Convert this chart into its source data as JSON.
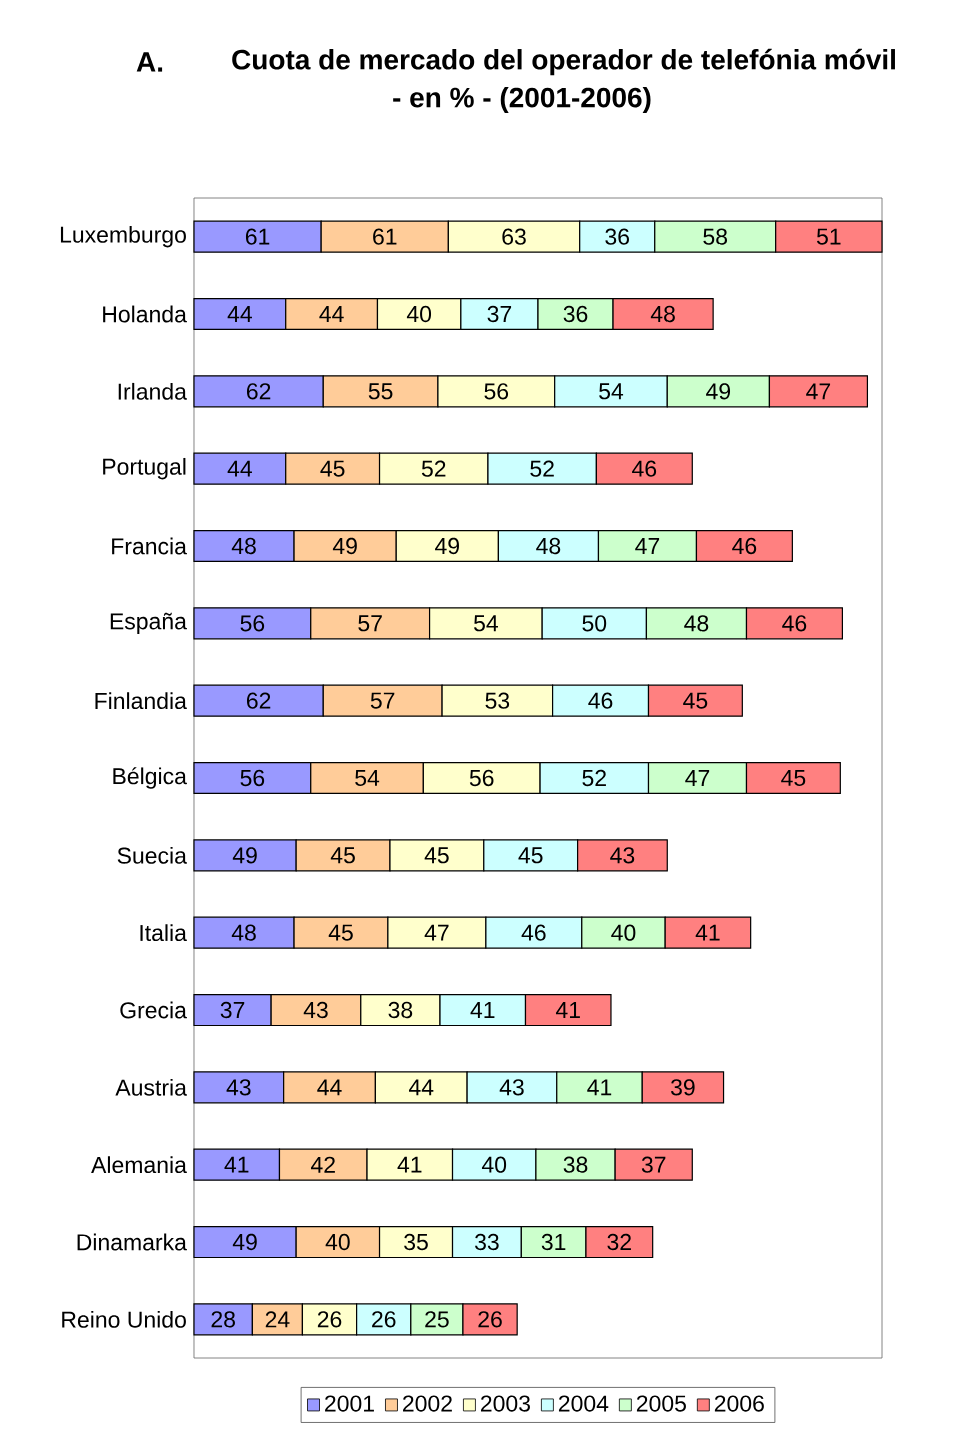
{
  "chart_data": {
    "type": "bar",
    "orientation": "horizontal",
    "stacked": true,
    "data_labels": true,
    "legend": "bottom",
    "title": "Cuota de mercado del operador de telefónia móvil",
    "subtitle": "- en % - (2001-2006)",
    "annotations": [
      "A."
    ],
    "categories": [
      "Luxemburgo",
      "Holanda",
      "Irlanda",
      "Portugal",
      "Francia",
      "España",
      "Finlandia",
      "Bélgica",
      "Suecia",
      "Italia",
      "Grecia",
      "Austria",
      "Alemania",
      "Dinamarka",
      "Reino Unido"
    ],
    "series": [
      {
        "name": "2001",
        "color": "#9999ff",
        "values": [
          61,
          44,
          62,
          44,
          48,
          56,
          62,
          56,
          49,
          48,
          37,
          43,
          41,
          49,
          28
        ]
      },
      {
        "name": "2002",
        "color": "#ffcc99",
        "values": [
          61,
          44,
          55,
          45,
          49,
          57,
          57,
          54,
          45,
          45,
          43,
          44,
          42,
          40,
          24
        ]
      },
      {
        "name": "2003",
        "color": "#ffffcc",
        "values": [
          63,
          40,
          56,
          52,
          49,
          54,
          53,
          56,
          45,
          47,
          38,
          44,
          41,
          35,
          26
        ]
      },
      {
        "name": "2004",
        "color": "#ccffff",
        "values": [
          36,
          37,
          54,
          52,
          48,
          50,
          46,
          52,
          45,
          46,
          41,
          43,
          40,
          33,
          26
        ]
      },
      {
        "name": "2005",
        "color": "#ccffcc",
        "values": [
          58,
          36,
          49,
          null,
          47,
          48,
          null,
          47,
          null,
          40,
          null,
          41,
          38,
          31,
          25
        ]
      },
      {
        "name": "2006",
        "color": "#ff8080",
        "values": [
          51,
          48,
          47,
          46,
          46,
          46,
          45,
          45,
          43,
          41,
          41,
          39,
          37,
          32,
          26
        ]
      }
    ]
  }
}
